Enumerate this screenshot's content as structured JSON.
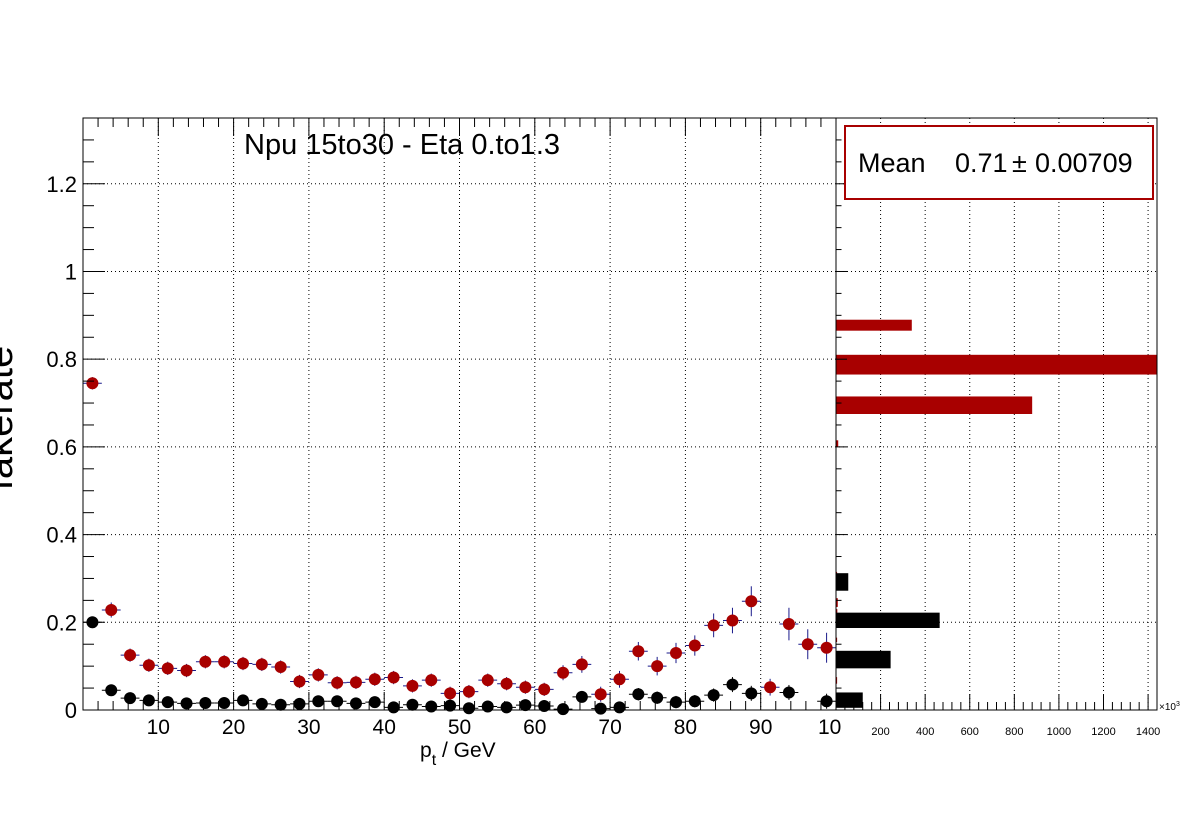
{
  "chart_data": [
    {
      "type": "scatter",
      "title": "Npu 15to30 - Eta 0.to1.3",
      "xlabel_main": "p",
      "xlabel_sub": "t",
      "xlabel_rest": " / GeV",
      "ylabel": "fakerate",
      "xlim": [
        0,
        100
      ],
      "ylim": [
        0,
        1.35
      ],
      "grid": true,
      "x_ticks": [
        10,
        20,
        30,
        40,
        50,
        60,
        70,
        80,
        90
      ],
      "x_tick_labels": [
        "10",
        "20",
        "30",
        "40",
        "50",
        "60",
        "70",
        "80",
        "90"
      ],
      "x_last_label": "10",
      "y_ticks": [
        0,
        0.2,
        0.4,
        0.6,
        0.8,
        1,
        1.2
      ],
      "y_tick_labels": [
        "0",
        "0.2",
        "0.4",
        "0.6",
        "0.8",
        "1",
        "1.2"
      ],
      "series": [
        {
          "color": "#a80000",
          "x": [
            1.25,
            3.75,
            6.25,
            8.75,
            11.25,
            13.75,
            16.25,
            18.75,
            21.25,
            23.75,
            26.25,
            28.75,
            31.25,
            33.75,
            36.25,
            38.75,
            41.25,
            43.75,
            46.25,
            48.75,
            51.25,
            53.75,
            56.25,
            58.75,
            61.25,
            63.75,
            66.25,
            68.75,
            71.25,
            73.75,
            76.25,
            78.75,
            81.25,
            83.75,
            86.25,
            88.75,
            91.25,
            93.75,
            96.25,
            98.75
          ],
          "y": [
            0.745,
            0.228,
            0.125,
            0.102,
            0.095,
            0.09,
            0.11,
            0.11,
            0.106,
            0.104,
            0.098,
            0.065,
            0.08,
            0.062,
            0.063,
            0.07,
            0.074,
            0.055,
            0.068,
            0.038,
            0.042,
            0.068,
            0.06,
            0.052,
            0.047,
            0.085,
            0.104,
            0.036,
            0.07,
            0.134,
            0.1,
            0.13,
            0.147,
            0.193,
            0.204,
            0.248,
            0.052,
            0.196,
            0.15,
            0.142
          ],
          "err": [
            0.005,
            0.008,
            0.006,
            0.006,
            0.006,
            0.006,
            0.006,
            0.006,
            0.006,
            0.006,
            0.006,
            0.006,
            0.006,
            0.006,
            0.006,
            0.006,
            0.006,
            0.006,
            0.006,
            0.006,
            0.006,
            0.006,
            0.006,
            0.006,
            0.006,
            0.008,
            0.01,
            0.008,
            0.01,
            0.012,
            0.012,
            0.014,
            0.014,
            0.018,
            0.02,
            0.025,
            0.01,
            0.028,
            0.025,
            0.025
          ]
        },
        {
          "color": "#000000",
          "x": [
            1.25,
            3.75,
            6.25,
            8.75,
            11.25,
            13.75,
            16.25,
            18.75,
            21.25,
            23.75,
            26.25,
            28.75,
            31.25,
            33.75,
            36.25,
            38.75,
            41.25,
            43.75,
            46.25,
            48.75,
            51.25,
            53.75,
            56.25,
            58.75,
            61.25,
            63.75,
            66.25,
            68.75,
            71.25,
            73.75,
            76.25,
            78.75,
            81.25,
            83.75,
            86.25,
            88.75,
            93.75,
            98.75
          ],
          "y": [
            0.2,
            0.045,
            0.027,
            0.022,
            0.018,
            0.015,
            0.016,
            0.016,
            0.022,
            0.014,
            0.012,
            0.014,
            0.02,
            0.02,
            0.015,
            0.018,
            0.006,
            0.012,
            0.008,
            0.01,
            0.004,
            0.008,
            0.006,
            0.011,
            0.009,
            0.002,
            0.03,
            0.003,
            0.006,
            0.036,
            0.028,
            0.018,
            0.02,
            0.034,
            0.058,
            0.038,
            0.04,
            0.02
          ],
          "err": [
            0.004,
            0.004,
            0.003,
            0.003,
            0.003,
            0.003,
            0.003,
            0.003,
            0.003,
            0.003,
            0.003,
            0.003,
            0.003,
            0.003,
            0.003,
            0.003,
            0.003,
            0.003,
            0.003,
            0.003,
            0.003,
            0.003,
            0.003,
            0.003,
            0.003,
            0.003,
            0.004,
            0.003,
            0.003,
            0.005,
            0.005,
            0.005,
            0.005,
            0.006,
            0.008,
            0.008,
            0.008,
            0.008
          ]
        }
      ]
    },
    {
      "type": "bar",
      "orientation": "horizontal",
      "xlim": [
        0,
        1440
      ],
      "x_ticks": [
        200,
        400,
        600,
        800,
        1000,
        1200,
        1400
      ],
      "x_tick_labels": [
        "200",
        "400",
        "600",
        "800",
        "1000",
        "1200",
        "1400"
      ],
      "x_multiplier": "×10",
      "x_multiplier_exp": "3",
      "stats": {
        "label": "Mean",
        "value": "0.71",
        "pm": "±",
        "error": "0.00709"
      },
      "series": [
        {
          "color": "#a80000",
          "bins": [
            {
              "y0": 0.865,
              "y1": 0.89,
              "value": 340
            },
            {
              "y0": 0.765,
              "y1": 0.81,
              "value": 1440
            },
            {
              "y0": 0.675,
              "y1": 0.715,
              "value": 880
            },
            {
              "y0": 0.6,
              "y1": 0.615,
              "value": 10
            },
            {
              "y0": 0.305,
              "y1": 0.315,
              "value": 5
            },
            {
              "y0": 0.195,
              "y1": 0.205,
              "value": 5
            },
            {
              "y0": 0.235,
              "y1": 0.255,
              "value": 8
            },
            {
              "y0": 0.22,
              "y1": 0.23,
              "value": 6
            },
            {
              "y0": 0.155,
              "y1": 0.165,
              "value": 5
            },
            {
              "y0": 0.1,
              "y1": 0.113,
              "value": 6
            },
            {
              "y0": 0.06,
              "y1": 0.075,
              "value": 5
            },
            {
              "y0": 0.015,
              "y1": 0.03,
              "value": 5
            }
          ]
        },
        {
          "color": "#000000",
          "bins": [
            {
              "y0": 0.272,
              "y1": 0.312,
              "value": 55
            },
            {
              "y0": 0.187,
              "y1": 0.222,
              "value": 465
            },
            {
              "y0": 0.095,
              "y1": 0.135,
              "value": 245
            },
            {
              "y0": 0.005,
              "y1": 0.04,
              "value": 120
            }
          ]
        }
      ]
    }
  ]
}
